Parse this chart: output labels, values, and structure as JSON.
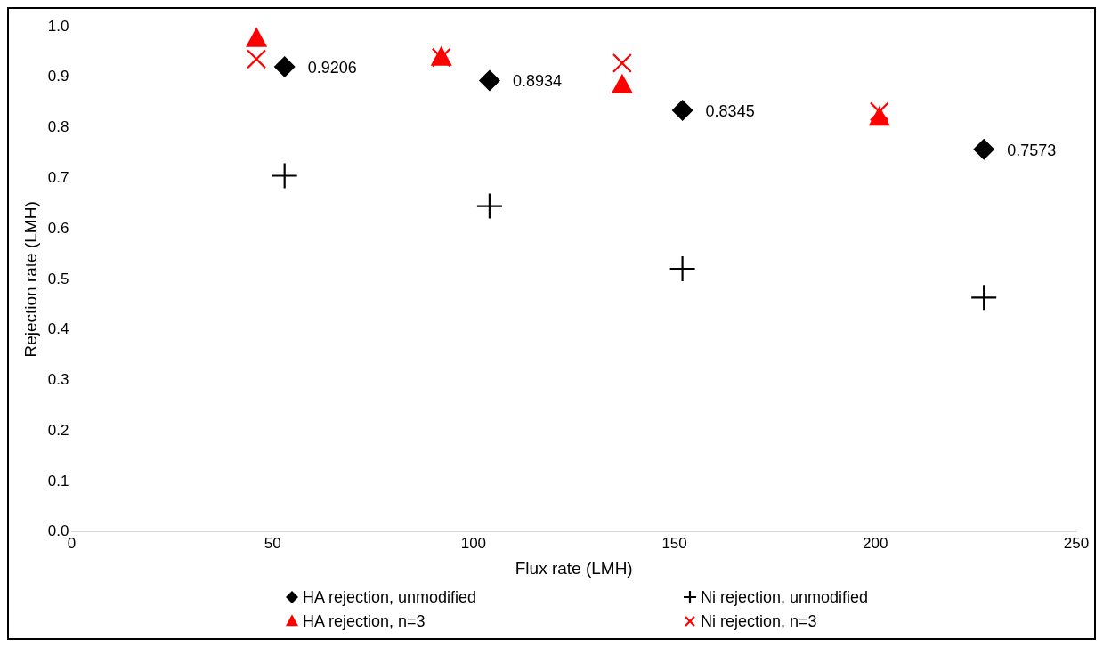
{
  "chart_data": {
    "type": "scatter",
    "xlabel": "Flux rate (LMH)",
    "ylabel": "Rejection rate (LMH)",
    "xlim": [
      0,
      250
    ],
    "xticks": [
      0,
      50,
      100,
      150,
      200,
      250
    ],
    "ylim": [
      0,
      1
    ],
    "yticks": [
      {
        "value": 0,
        "label": "0.0"
      },
      {
        "value": 0.1,
        "label": "0.1"
      },
      {
        "value": 0.2,
        "label": "0.2"
      },
      {
        "value": 0.3,
        "label": "0.3"
      },
      {
        "value": 0.4,
        "label": "0.4"
      },
      {
        "value": 0.5,
        "label": "0.5"
      },
      {
        "value": 0.6,
        "label": "0.6"
      },
      {
        "value": 0.7,
        "label": "0.7"
      },
      {
        "value": 0.8,
        "label": "0.8"
      },
      {
        "value": 0.9,
        "label": "0.9"
      },
      {
        "value": 1,
        "label": "1.0"
      }
    ],
    "grid": false,
    "legend": "bottom",
    "series": [
      {
        "name": "HA rejection, unmodified",
        "color": "#000000",
        "marker": "diamond",
        "x": [
          53,
          104,
          152,
          227
        ],
        "values": [
          0.9206,
          0.8934,
          0.8345,
          0.7573
        ],
        "value_labels": [
          "0.9206",
          "0.8934",
          "0.8345",
          "0.7573"
        ]
      },
      {
        "name": "Ni rejection, unmodified",
        "color": "#000000",
        "marker": "cross",
        "x": [
          53,
          104,
          152,
          227
        ],
        "values": [
          0.705,
          0.645,
          0.521,
          0.464
        ]
      },
      {
        "name": "HA rejection, n=3",
        "color": "#ff0000",
        "marker": "triangle",
        "x": [
          46,
          92,
          137,
          201
        ],
        "values": [
          0.976,
          0.939,
          0.884,
          0.82
        ]
      },
      {
        "name": "Ni rejection, n=3",
        "color": "#ff0000",
        "marker": "x",
        "x": [
          46,
          92,
          137,
          201
        ],
        "values": [
          0.936,
          0.939,
          0.928,
          0.832
        ]
      }
    ]
  }
}
